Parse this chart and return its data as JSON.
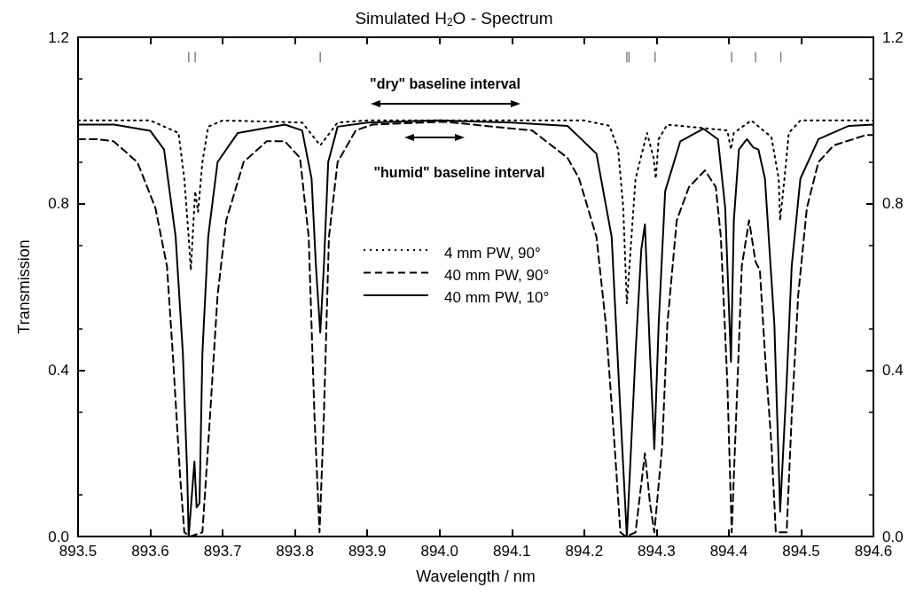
{
  "chart_data": {
    "type": "line",
    "title": "Simulated H$_{2}$O - Spectrum",
    "xlabel": "Wavelength / nm",
    "ylabel": "Transmission",
    "xlim": [
      893.5,
      894.6
    ],
    "xticks": [
      893.5,
      893.6,
      893.7,
      893.8,
      893.9,
      {
        "value": 894,
        "label": "894.0"
      },
      894.1,
      894.2,
      894.3,
      894.4,
      894.5,
      894.6
    ],
    "ylim": [
      0,
      1.2
    ],
    "yticks": [
      {
        "value": 0,
        "label": "0.0"
      },
      0.4,
      0.8,
      1.2
    ],
    "y2lim": [
      0,
      1.2
    ],
    "y2ticks": [
      {
        "value": 0,
        "label": "0.0"
      },
      0.4,
      0.8,
      1.2
    ],
    "grid": false,
    "legend": "center",
    "marker": "none",
    "annotations": [
      "\"dry\" baseline interval",
      "\"humid\" baseline interval"
    ],
    "series": [
      {
        "name": "4 mm PW, 90°",
        "color": "#000000",
        "line_style": "dotted",
        "x": [
          893.5,
          893.6,
          893.639,
          893.647,
          893.653,
          893.656,
          893.662,
          893.666,
          893.672,
          893.68,
          893.7,
          893.81,
          893.835,
          893.859,
          893.9,
          894.2,
          894.235,
          894.247,
          894.254,
          894.259,
          894.271,
          894.287,
          894.296,
          894.299,
          894.303,
          894.315,
          894.398,
          894.403,
          894.407,
          894.431,
          894.459,
          894.469,
          894.471,
          894.477,
          894.483,
          894.499,
          894.6
        ],
        "values": [
          1.0,
          1.0,
          0.97,
          0.86,
          0.72,
          0.64,
          0.83,
          0.78,
          0.9,
          0.985,
          1.0,
          0.995,
          0.94,
          0.995,
          1.0,
          1.0,
          0.987,
          0.93,
          0.79,
          0.56,
          0.86,
          0.97,
          0.91,
          0.86,
          0.955,
          0.99,
          0.976,
          0.93,
          0.97,
          1.0,
          0.96,
          0.86,
          0.76,
          0.86,
          0.97,
          1.0,
          1.0
        ]
      },
      {
        "name": "40 mm PW, 90°",
        "color": "#000000",
        "line_style": "dashed",
        "x": [
          893.5,
          893.525,
          893.549,
          893.582,
          893.607,
          893.623,
          893.631,
          893.641,
          893.647,
          893.655,
          893.672,
          893.68,
          893.693,
          893.705,
          893.729,
          893.761,
          893.786,
          893.807,
          893.819,
          893.827,
          893.834,
          893.84,
          893.847,
          893.859,
          893.884,
          893.907,
          894.005,
          894.128,
          894.177,
          894.193,
          894.217,
          894.23,
          894.242,
          894.25,
          894.258,
          894.271,
          894.284,
          894.291,
          894.297,
          894.308,
          894.315,
          894.328,
          894.345,
          894.367,
          894.382,
          894.389,
          894.398,
          894.404,
          894.412,
          894.418,
          894.428,
          894.437,
          894.443,
          894.45,
          894.459,
          894.465,
          894.48,
          894.487,
          894.496,
          894.508,
          894.524,
          894.545,
          894.59,
          894.6
        ],
        "values": [
          0.955,
          0.955,
          0.95,
          0.9,
          0.79,
          0.65,
          0.44,
          0.15,
          0.01,
          0.0,
          0.01,
          0.22,
          0.58,
          0.76,
          0.9,
          0.95,
          0.95,
          0.91,
          0.72,
          0.29,
          0.01,
          0.29,
          0.72,
          0.9,
          0.976,
          0.99,
          0.997,
          0.976,
          0.91,
          0.86,
          0.72,
          0.51,
          0.22,
          0.01,
          0.0,
          0.01,
          0.2,
          0.08,
          0.01,
          0.22,
          0.51,
          0.76,
          0.84,
          0.88,
          0.84,
          0.72,
          0.37,
          0.01,
          0.37,
          0.65,
          0.76,
          0.66,
          0.64,
          0.44,
          0.22,
          0.01,
          0.01,
          0.29,
          0.58,
          0.79,
          0.9,
          0.94,
          0.965,
          0.965
        ]
      },
      {
        "name": "40 mm PW, 10°",
        "color": "#000000",
        "line_style": "solid",
        "x": [
          893.5,
          893.55,
          893.6,
          893.619,
          893.635,
          893.645,
          893.651,
          893.653,
          893.661,
          893.664,
          893.668,
          893.672,
          893.68,
          893.693,
          893.721,
          893.786,
          893.81,
          893.823,
          893.829,
          893.835,
          893.84,
          893.846,
          893.859,
          893.9,
          894.0,
          894.1,
          894.177,
          894.217,
          894.238,
          894.248,
          894.259,
          894.271,
          894.279,
          894.284,
          894.291,
          894.297,
          894.303,
          894.312,
          894.333,
          894.365,
          894.385,
          894.395,
          894.403,
          894.407,
          894.414,
          894.425,
          894.434,
          894.441,
          894.45,
          894.463,
          894.471,
          894.48,
          894.487,
          894.499,
          894.524,
          894.566,
          894.6
        ],
        "values": [
          0.99,
          0.99,
          0.975,
          0.93,
          0.72,
          0.44,
          0.15,
          0.0,
          0.18,
          0.07,
          0.08,
          0.44,
          0.72,
          0.9,
          0.97,
          0.99,
          0.976,
          0.86,
          0.65,
          0.49,
          0.65,
          0.9,
          0.985,
          0.995,
          1.0,
          0.995,
          0.987,
          0.92,
          0.72,
          0.37,
          0.0,
          0.44,
          0.69,
          0.75,
          0.44,
          0.21,
          0.51,
          0.83,
          0.95,
          0.98,
          0.955,
          0.79,
          0.42,
          0.76,
          0.93,
          0.955,
          0.935,
          0.93,
          0.86,
          0.51,
          0.06,
          0.37,
          0.65,
          0.86,
          0.955,
          0.987,
          0.99
        ]
      },
      {
        "type": "bar",
        "color": "#808080",
        "x": [
          893.653,
          893.662,
          893.835,
          894.259,
          894.262,
          894.298,
          894.404,
          894.437,
          894.472
        ],
        "base": [
          1.14,
          1.14,
          1.14,
          1.14,
          1.14,
          1.14,
          1.14,
          1.14,
          1.14
        ],
        "values": [
          0.025,
          0.025,
          0.025,
          0.025,
          0.025,
          0.025,
          0.025,
          0.025,
          0.025
        ]
      }
    ]
  }
}
